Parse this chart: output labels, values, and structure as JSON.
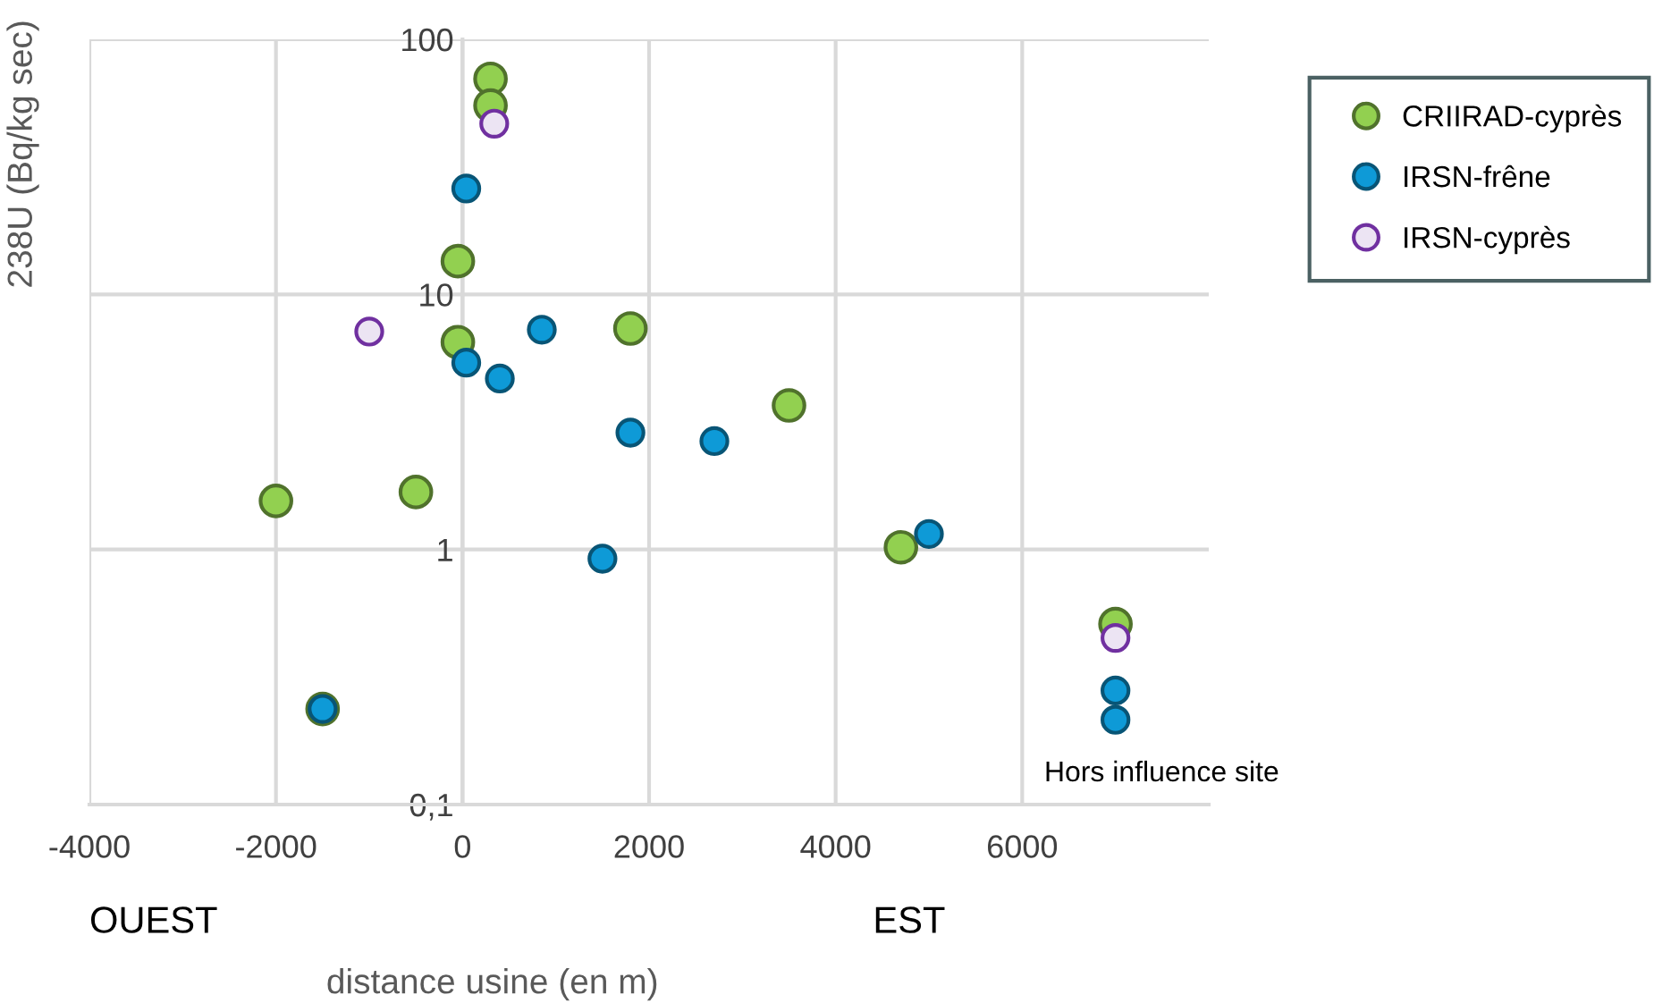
{
  "chart_data": {
    "type": "scatter",
    "xlabel": "distance usine (en m)",
    "ylabel": "238U (Bq/kg sec)",
    "series": [
      {
        "name": "CRIIRAD-cyprès",
        "color": "#92d050",
        "x": [
          300,
          300,
          -50,
          -50,
          -2000,
          -500,
          1800,
          3500,
          4700,
          7000,
          -1500
        ],
        "values": [
          70,
          55,
          13.5,
          6.5,
          1.55,
          1.68,
          7.35,
          3.67,
          1.02,
          0.51,
          0.237
        ]
      },
      {
        "name": "IRSN-frêne",
        "color": "#0e9ad7",
        "x": [
          40,
          40,
          400,
          850,
          1800,
          1500,
          2700,
          5000,
          7000,
          7000,
          -1500
        ],
        "values": [
          26,
          5.4,
          4.68,
          7.27,
          2.87,
          0.92,
          2.66,
          1.15,
          0.28,
          0.215,
          0.237
        ]
      },
      {
        "name": "IRSN-cyprès",
        "color": "#7030a0",
        "x": [
          340,
          -1000,
          7000
        ],
        "values": [
          46.7,
          7.15,
          0.45
        ]
      }
    ],
    "log": "y",
    "xlim": [
      -4000,
      8000
    ],
    "xticks": [
      -4000,
      -2000,
      0,
      2000,
      4000,
      6000
    ],
    "ylim": [
      0.1,
      100
    ],
    "yticks": [
      {
        "value": 0.1,
        "label": "0,1"
      },
      1,
      10,
      100
    ],
    "grid": true,
    "legend": "right",
    "marker": "circle",
    "annotations": [
      "OUEST",
      "EST",
      "Hors influence site"
    ]
  }
}
